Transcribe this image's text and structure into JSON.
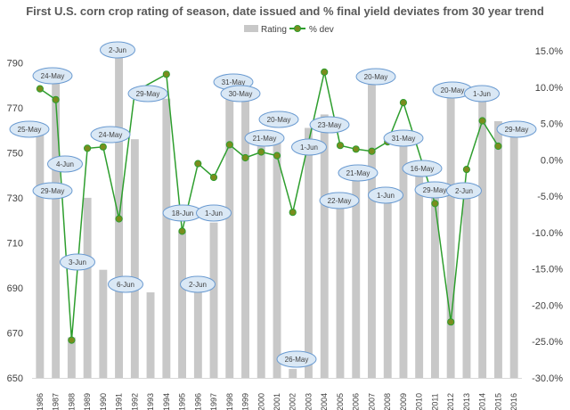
{
  "chart_data": {
    "type": "bar+line",
    "title": "First U.S. corn crop rating of season, date issued and % final yield deviates from 30 year trend",
    "legend": {
      "position": "top-center",
      "items": [
        "Rating",
        "% dev"
      ]
    },
    "x": [
      "1986",
      "1987",
      "1988",
      "1989",
      "1990",
      "1991",
      "1992",
      "1993",
      "1994",
      "1995",
      "1996",
      "1997",
      "1998",
      "1999",
      "2000",
      "2001",
      "2002",
      "2003",
      "2004",
      "2005",
      "2006",
      "2007",
      "2008",
      "2009",
      "2010",
      "2011",
      "2012",
      "2013",
      "2014",
      "2015",
      "2016"
    ],
    "y_left": {
      "ylim": [
        650,
        800
      ],
      "ticks": [
        650,
        670,
        690,
        710,
        730,
        750,
        770,
        790
      ]
    },
    "y_right": {
      "ylim": [
        -30,
        16.5
      ],
      "ticks": [
        "-30.0%",
        "-25.0%",
        "-20.0%",
        "-15.0%",
        "-10.0%",
        "-5.0%",
        "0.0%",
        "5.0%",
        "10.0%",
        "15.0%"
      ],
      "tick_values": [
        -30,
        -25,
        -20,
        -15,
        -10,
        -5,
        0,
        5,
        10,
        15
      ]
    },
    "series": [
      {
        "name": "Rating",
        "kind": "bar",
        "color": "#c8c8c8",
        "values": [
          758,
          782,
          668,
          730,
          698,
          796,
          756,
          688,
          774,
          715,
          688,
          719,
          779,
          774,
          760,
          757,
          654,
          761,
          767,
          726,
          738,
          782,
          728,
          760,
          740,
          732,
          777,
          730,
          774,
          764,
          758
        ]
      },
      {
        "name": "% dev",
        "kind": "line",
        "color": "#2e9e2e",
        "marker_color": "#7a8c1e",
        "values": [
          9.8,
          8.3,
          -24.8,
          1.6,
          1.8,
          -8.1,
          9.4,
          null,
          11.8,
          -9.8,
          -0.5,
          -2.4,
          2.1,
          0.3,
          1.1,
          0.6,
          -7.2,
          null,
          12.1,
          2.0,
          1.5,
          1.2,
          2.5,
          7.9,
          null,
          -6.0,
          -22.3,
          -1.3,
          5.4,
          1.9,
          null
        ]
      }
    ],
    "annotations": [
      {
        "year": "1986",
        "text": "25-May"
      },
      {
        "year": "1987",
        "text": "24-May"
      },
      {
        "year": "1988",
        "text": "29-May"
      },
      {
        "year": "1989",
        "text": "4-Jun"
      },
      {
        "year": "1990",
        "text": "3-Jun"
      },
      {
        "year": "1991",
        "text": "2-Jun"
      },
      {
        "year": "1992",
        "text": "24-May"
      },
      {
        "year": "1993",
        "text": "6-Jun"
      },
      {
        "year": "1994",
        "text": "29-May"
      },
      {
        "year": "1995",
        "text": "18-Jun"
      },
      {
        "year": "1996",
        "text": "2-Jun"
      },
      {
        "year": "1997",
        "text": "1-Jun"
      },
      {
        "year": "1998",
        "text": "31-May"
      },
      {
        "year": "1999",
        "text": "30-May"
      },
      {
        "year": "2000",
        "text": "21-May"
      },
      {
        "year": "2001",
        "text": "20-May"
      },
      {
        "year": "2002",
        "text": "26-May"
      },
      {
        "year": "2003",
        "text": "1-Jun"
      },
      {
        "year": "2004",
        "text": "23-May"
      },
      {
        "year": "2005",
        "text": "22-May"
      },
      {
        "year": "2006",
        "text": "21-May"
      },
      {
        "year": "2007",
        "text": "20-May"
      },
      {
        "year": "2008",
        "text": "1-Jun"
      },
      {
        "year": "2009",
        "text": "31-May"
      },
      {
        "year": "2010",
        "text": "16-May"
      },
      {
        "year": "2011",
        "text": "29-May"
      },
      {
        "year": "2012",
        "text": "20-May"
      },
      {
        "year": "2013",
        "text": "2-Jun"
      },
      {
        "year": "2014",
        "text": "1-Jun"
      },
      {
        "year": "2015",
        "text": "29-May"
      }
    ],
    "grid": false
  }
}
